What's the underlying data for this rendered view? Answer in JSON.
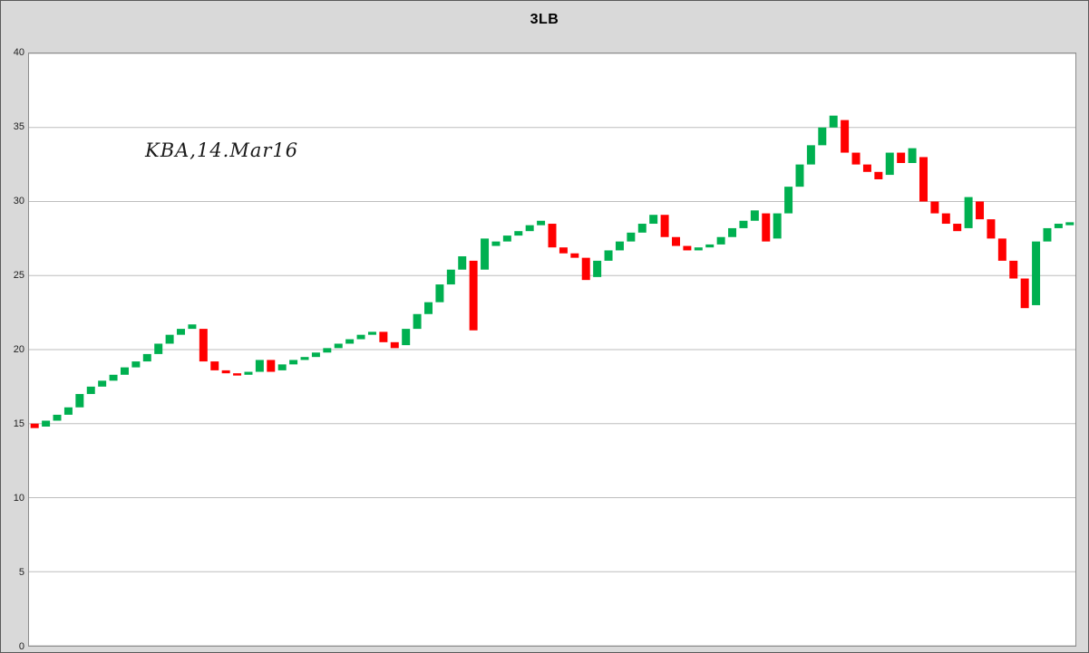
{
  "chart_data": {
    "type": "bar",
    "subtype": "three-line-break",
    "title": "3LB",
    "annotation": "KBA,14.Mar16",
    "xlabel": "",
    "ylabel": "",
    "y_axis": {
      "min": 0,
      "max": 40,
      "tick_step": 5,
      "ticks": [
        0,
        5,
        10,
        15,
        20,
        25,
        30,
        35,
        40
      ]
    },
    "grid": "horizontal",
    "legend": "none",
    "colors": {
      "up": "#00B050",
      "down": "#FF0000",
      "grid": "#bdbdbd",
      "plot_border": "#8c8c8c",
      "background": "#D9D9D9",
      "plot_background": "#FFFFFF"
    },
    "bars_format": "[open, close] per line-break bar, left to right; close > open = up (green), close < open = down (red)",
    "bars": [
      [
        15.0,
        14.7
      ],
      [
        14.8,
        15.2
      ],
      [
        15.2,
        15.6
      ],
      [
        15.6,
        16.1
      ],
      [
        16.1,
        17.0
      ],
      [
        17.0,
        17.5
      ],
      [
        17.5,
        17.9
      ],
      [
        17.9,
        18.3
      ],
      [
        18.3,
        18.8
      ],
      [
        18.8,
        19.2
      ],
      [
        19.2,
        19.7
      ],
      [
        19.7,
        20.4
      ],
      [
        20.4,
        21.0
      ],
      [
        21.0,
        21.4
      ],
      [
        21.4,
        21.7
      ],
      [
        21.4,
        19.2
      ],
      [
        19.2,
        18.6
      ],
      [
        18.6,
        18.4
      ],
      [
        18.4,
        18.3
      ],
      [
        18.3,
        18.5
      ],
      [
        18.5,
        19.3
      ],
      [
        19.3,
        18.5
      ],
      [
        18.6,
        19.0
      ],
      [
        19.0,
        19.3
      ],
      [
        19.3,
        19.5
      ],
      [
        19.5,
        19.8
      ],
      [
        19.8,
        20.1
      ],
      [
        20.1,
        20.4
      ],
      [
        20.4,
        20.7
      ],
      [
        20.7,
        21.0
      ],
      [
        21.0,
        21.2
      ],
      [
        21.2,
        20.5
      ],
      [
        20.5,
        20.1
      ],
      [
        20.3,
        21.4
      ],
      [
        21.4,
        22.4
      ],
      [
        22.4,
        23.2
      ],
      [
        23.2,
        24.4
      ],
      [
        24.4,
        25.4
      ],
      [
        25.4,
        26.3
      ],
      [
        26.0,
        21.3
      ],
      [
        25.4,
        27.5
      ],
      [
        27.0,
        27.3
      ],
      [
        27.3,
        27.7
      ],
      [
        27.7,
        28.0
      ],
      [
        28.0,
        28.4
      ],
      [
        28.4,
        28.7
      ],
      [
        28.5,
        26.9
      ],
      [
        26.9,
        26.5
      ],
      [
        26.5,
        26.2
      ],
      [
        26.2,
        24.7
      ],
      [
        24.9,
        26.0
      ],
      [
        26.0,
        26.7
      ],
      [
        26.7,
        27.3
      ],
      [
        27.3,
        27.9
      ],
      [
        27.9,
        28.5
      ],
      [
        28.5,
        29.1
      ],
      [
        29.1,
        27.6
      ],
      [
        27.6,
        27.0
      ],
      [
        27.0,
        26.7
      ],
      [
        26.7,
        26.9
      ],
      [
        26.9,
        27.1
      ],
      [
        27.1,
        27.6
      ],
      [
        27.6,
        28.2
      ],
      [
        28.2,
        28.7
      ],
      [
        28.7,
        29.4
      ],
      [
        29.2,
        27.3
      ],
      [
        27.5,
        29.2
      ],
      [
        29.2,
        31.0
      ],
      [
        31.0,
        32.5
      ],
      [
        32.5,
        33.8
      ],
      [
        33.8,
        35.0
      ],
      [
        35.0,
        35.8
      ],
      [
        35.5,
        33.3
      ],
      [
        33.3,
        32.5
      ],
      [
        32.5,
        32.0
      ],
      [
        32.0,
        31.5
      ],
      [
        31.8,
        33.3
      ],
      [
        33.3,
        32.6
      ],
      [
        32.6,
        33.6
      ],
      [
        33.0,
        30.0
      ],
      [
        30.0,
        29.2
      ],
      [
        29.2,
        28.5
      ],
      [
        28.5,
        28.0
      ],
      [
        28.2,
        30.3
      ],
      [
        30.0,
        28.8
      ],
      [
        28.8,
        27.5
      ],
      [
        27.5,
        26.0
      ],
      [
        26.0,
        24.8
      ],
      [
        24.8,
        22.8
      ],
      [
        23.0,
        27.3
      ],
      [
        27.3,
        28.2
      ],
      [
        28.2,
        28.5
      ],
      [
        28.4,
        28.6
      ]
    ]
  }
}
